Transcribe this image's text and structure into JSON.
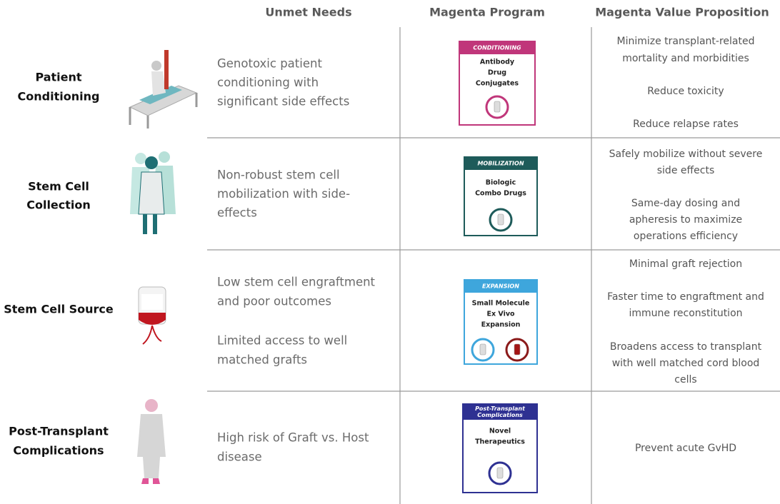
{
  "headers": [
    "Unmet Needs",
    "Magenta Program",
    "Magenta Value Proposition"
  ],
  "rows": [
    {
      "stage": [
        "Patient",
        "Conditioning"
      ],
      "needs": [
        [
          "Genotoxic patient",
          "conditioning with",
          "significant side effects"
        ]
      ],
      "program": {
        "tag": [
          "CONDITIONING"
        ],
        "name": [
          "Antibody",
          "Drug",
          "Conjugates"
        ]
      },
      "value": [
        [
          "Minimize transplant-related",
          "mortality and morbidities"
        ],
        [
          "Reduce toxicity"
        ],
        [
          "Reduce relapse rates"
        ]
      ]
    },
    {
      "stage": [
        "Stem Cell",
        "Collection"
      ],
      "needs": [
        [
          "Non-robust stem cell",
          "mobilization with side-",
          "effects"
        ]
      ],
      "program": {
        "tag": [
          "MOBILIZATION"
        ],
        "name": [
          "Biologic",
          "Combo Drugs"
        ]
      },
      "value": [
        [
          "Safely mobilize without severe",
          "side effects"
        ],
        [
          "Same-day dosing and",
          "apheresis to maximize",
          "operations efficiency"
        ]
      ]
    },
    {
      "stage": [
        "Stem Cell Source"
      ],
      "needs": [
        [
          "Low stem cell engraftment",
          "and poor outcomes"
        ],
        [
          "Limited access to well",
          "matched grafts"
        ]
      ],
      "program": {
        "tag": [
          "EXPANSION"
        ],
        "name": [
          "Small Molecule",
          "Ex Vivo",
          "Expansion"
        ]
      },
      "value": [
        [
          "Minimal graft rejection"
        ],
        [
          "Faster time to engraftment and",
          "immune reconstitution"
        ],
        [
          "Broadens access to transplant",
          "with well matched cord blood",
          "cells"
        ]
      ]
    },
    {
      "stage": [
        "Post-Transplant",
        "Complications"
      ],
      "needs": [
        [
          "High risk of Graft vs. Host",
          "disease"
        ]
      ],
      "program": {
        "tag": [
          "Post-Transplant",
          "Complications"
        ],
        "name": [
          "Novel",
          "Therapeutics"
        ]
      },
      "value": [
        [
          "Prevent acute GvHD"
        ]
      ]
    }
  ]
}
